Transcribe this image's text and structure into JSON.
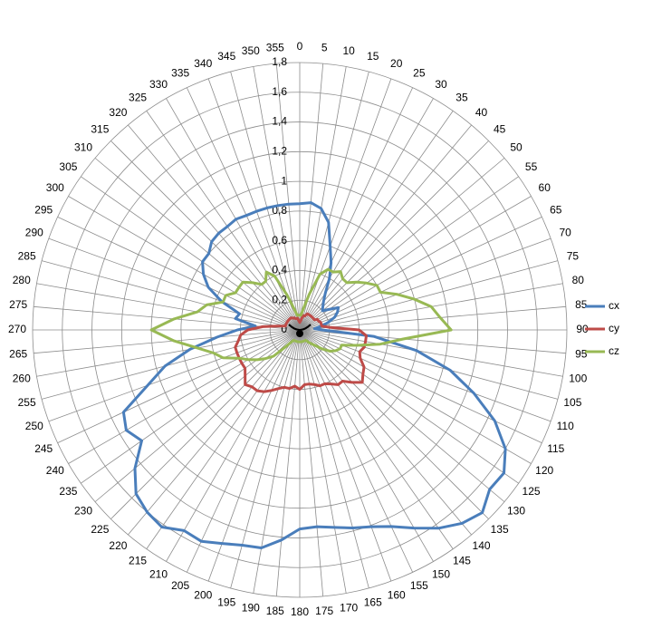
{
  "chart_data": {
    "type": "radar",
    "categories": [
      "0",
      "5",
      "10",
      "15",
      "20",
      "25",
      "30",
      "35",
      "40",
      "45",
      "50",
      "55",
      "60",
      "65",
      "70",
      "75",
      "80",
      "85",
      "90",
      "95",
      "100",
      "105",
      "110",
      "115",
      "120",
      "125",
      "130",
      "135",
      "140",
      "145",
      "150",
      "155",
      "160",
      "165",
      "170",
      "175",
      "180",
      "185",
      "190",
      "195",
      "200",
      "205",
      "210",
      "215",
      "220",
      "225",
      "230",
      "235",
      "240",
      "245",
      "250",
      "255",
      "260",
      "265",
      "270",
      "275",
      "280",
      "285",
      "290",
      "295",
      "300",
      "305",
      "310",
      "315",
      "320",
      "325",
      "330",
      "335",
      "340",
      "345",
      "350",
      "355"
    ],
    "rlim": [
      0,
      1.8
    ],
    "rticks": [
      0,
      {
        "value": 0.2,
        "label": "0,2"
      },
      {
        "value": 0.4,
        "label": "0,4"
      },
      {
        "value": 0.6,
        "label": "0,6"
      },
      {
        "value": 0.8,
        "label": "0,8"
      },
      1,
      {
        "value": 1.2,
        "label": "1,2"
      },
      {
        "value": 1.4,
        "label": "1,4"
      },
      {
        "value": 1.6,
        "label": "1,6"
      },
      {
        "value": 1.8,
        "label": "1,8"
      }
    ],
    "grid": true,
    "legend": "right",
    "series": [
      {
        "name": "cx",
        "color": "#4a7ebb",
        "values": [
          0.85,
          0.86,
          0.83,
          0.75,
          0.6,
          0.5,
          0.4,
          0.3,
          0.25,
          0.22,
          0.2,
          0.24,
          0.3,
          0.28,
          0.25,
          0.2,
          0.15,
          0.1,
          0.15,
          0.5,
          0.8,
          1.05,
          1.25,
          1.45,
          1.6,
          1.68,
          1.67,
          1.74,
          1.7,
          1.63,
          1.54,
          1.46,
          1.41,
          1.38,
          1.35,
          1.33,
          1.34,
          1.42,
          1.49,
          1.5,
          1.53,
          1.57,
          1.56,
          1.62,
          1.6,
          1.56,
          1.45,
          1.3,
          1.35,
          1.31,
          1.09,
          0.94,
          0.75,
          0.56,
          0.42,
          0.3,
          0.44,
          0.42,
          0.56,
          0.68,
          0.75,
          0.8,
          0.8,
          0.84,
          0.85,
          0.85,
          0.86,
          0.85,
          0.85,
          0.85,
          0.85,
          0.85
        ]
      },
      {
        "name": "cy",
        "color": "#be4b48",
        "values": [
          0.05,
          0.06,
          0.08,
          0.1,
          0.1,
          0.12,
          0.12,
          0.12,
          0.12,
          0.12,
          0.12,
          0.12,
          0.14,
          0.14,
          0.15,
          0.15,
          0.15,
          0.2,
          0.4,
          0.45,
          0.45,
          0.45,
          0.43,
          0.45,
          0.5,
          0.52,
          0.55,
          0.5,
          0.45,
          0.45,
          0.42,
          0.4,
          0.4,
          0.38,
          0.37,
          0.37,
          0.4,
          0.38,
          0.4,
          0.4,
          0.42,
          0.45,
          0.48,
          0.5,
          0.5,
          0.52,
          0.48,
          0.45,
          0.45,
          0.45,
          0.45,
          0.45,
          0.42,
          0.4,
          0.35,
          0.25,
          0.15,
          0.1,
          0.1,
          0.1,
          0.1,
          0.1,
          0.1,
          0.1,
          0.1,
          0.1,
          0.09,
          0.09,
          0.08,
          0.08,
          0.08,
          0.06
        ]
      },
      {
        "name": "cz",
        "color": "#98b954",
        "values": [
          0.1,
          0.1,
          0.15,
          0.25,
          0.4,
          0.45,
          0.45,
          0.48,
          0.45,
          0.45,
          0.5,
          0.55,
          0.6,
          0.6,
          0.7,
          0.8,
          0.9,
          0.95,
          1.02,
          0.7,
          0.55,
          0.4,
          0.3,
          0.3,
          0.28,
          0.25,
          0.2,
          0.15,
          0.12,
          0.1,
          0.08,
          0.08,
          0.08,
          0.08,
          0.08,
          0.08,
          0.08,
          0.08,
          0.08,
          0.08,
          0.08,
          0.08,
          0.08,
          0.1,
          0.15,
          0.25,
          0.3,
          0.35,
          0.4,
          0.45,
          0.55,
          0.6,
          0.7,
          0.85,
          1.0,
          0.85,
          0.7,
          0.65,
          0.55,
          0.55,
          0.5,
          0.5,
          0.5,
          0.45,
          0.4,
          0.4,
          0.45,
          0.4,
          0.25,
          0.15,
          0.1,
          0.1
        ]
      }
    ]
  }
}
